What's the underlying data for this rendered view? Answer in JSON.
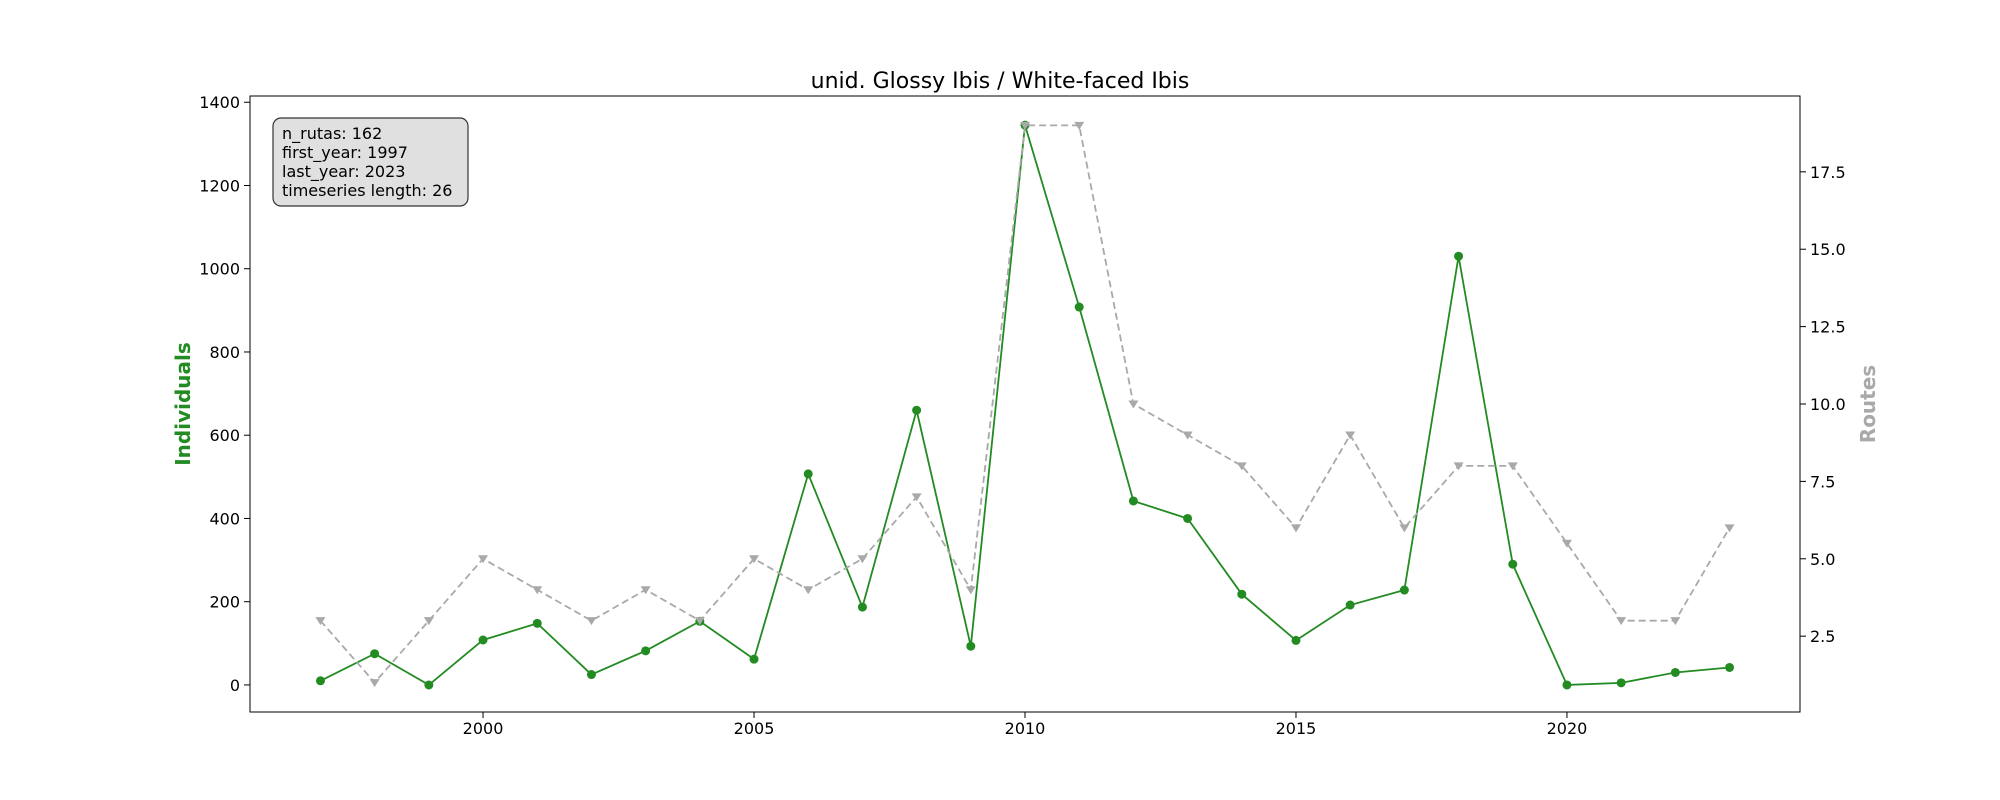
{
  "chart_data": {
    "type": "line",
    "title": "unid. Glossy Ibis / White-faced Ibis",
    "xlabel": "",
    "ylabel": "Individuals",
    "y2label": "Routes",
    "x": [
      1997,
      1998,
      1999,
      2000,
      2001,
      2002,
      2003,
      2004,
      2005,
      2006,
      2007,
      2008,
      2009,
      2010,
      2011,
      2012,
      2013,
      2014,
      2015,
      2016,
      2017,
      2018,
      2019,
      2020,
      2021,
      2022,
      2023
    ],
    "xlim": [
      1995.7,
      2024.3
    ],
    "xticks": [
      2000,
      2005,
      2010,
      2015,
      2020
    ],
    "ylim": [
      -65,
      1415
    ],
    "yticks": [
      0,
      200,
      400,
      600,
      800,
      1000,
      1200,
      1400
    ],
    "y2lim": [
      0.05,
      19.95
    ],
    "y2ticks": [
      2.5,
      5.0,
      7.5,
      10.0,
      12.5,
      15.0,
      17.5
    ],
    "y2ticklabels": [
      "2.5",
      "5.0",
      "7.5",
      "10.0",
      "12.5",
      "15.0",
      "17.5"
    ],
    "grid": false,
    "series": [
      {
        "axis": "left",
        "color": "#228b22",
        "style": "solid",
        "marker": "circle",
        "values": [
          10,
          75,
          0,
          108,
          148,
          25,
          82,
          153,
          62,
          507,
          187,
          660,
          93,
          1345,
          908,
          442,
          400,
          218,
          107,
          192,
          228,
          1030,
          290,
          0,
          5,
          30,
          42
        ]
      },
      {
        "axis": "right",
        "color": "#a9a9a9",
        "style": "dashed",
        "marker": "triangle-down",
        "values": [
          3,
          1,
          3,
          5,
          4,
          3,
          4,
          3,
          5,
          4,
          5,
          7,
          4,
          19,
          19,
          10,
          9,
          8,
          6,
          9,
          6,
          8,
          8,
          5.5,
          3,
          3,
          6
        ]
      }
    ],
    "info_box": [
      "n_rutas: 162",
      "first_year: 1997",
      "last_year: 2023",
      "timeseries length: 26"
    ]
  }
}
